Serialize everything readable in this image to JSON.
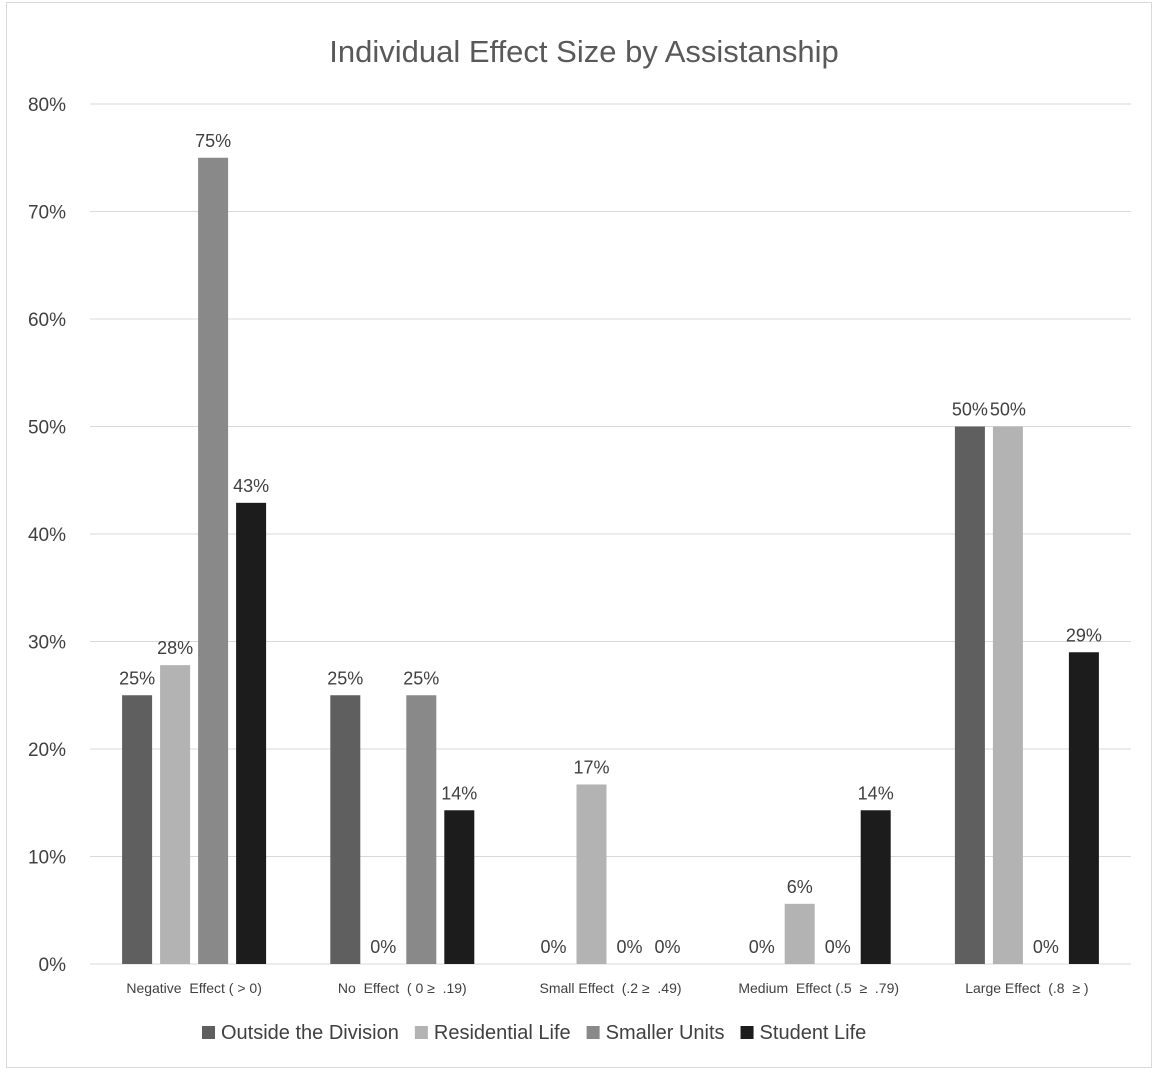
{
  "chart_data": {
    "type": "bar",
    "title": "Individual Effect Size by Assistanship",
    "xlabel": "",
    "ylabel": "",
    "ylim": [
      0,
      80
    ],
    "yticks": [
      "0%",
      "10%",
      "20%",
      "30%",
      "40%",
      "50%",
      "60%",
      "70%",
      "80%"
    ],
    "grid": true,
    "legend_position": "bottom",
    "categories": [
      "Negative  Effect ( > 0)",
      "No  Effect  ( 0 ≥  .19)",
      "Small Effect  (.2 ≥  .49)",
      "Medium  Effect (.5  ≥  .79)",
      "Large Effect  (.8  ≥ )"
    ],
    "series": [
      {
        "name": "Outside the Division",
        "color": "#5f5f5f",
        "values": [
          25,
          25,
          0,
          0,
          50
        ],
        "labels": [
          "25%",
          "25%",
          "0%",
          "0%",
          "50%"
        ]
      },
      {
        "name": "Residential Life",
        "color": "#b3b3b3",
        "values": [
          27.8,
          0,
          16.7,
          5.6,
          50
        ],
        "labels": [
          "28%",
          "0%",
          "17%",
          "6%",
          "50%"
        ]
      },
      {
        "name": "Smaller Units",
        "color": "#898989",
        "values": [
          75,
          25,
          0,
          0,
          0
        ],
        "labels": [
          "75%",
          "25%",
          "0%",
          "0%",
          "0%"
        ]
      },
      {
        "name": "Student Life",
        "color": "#1c1c1c",
        "values": [
          42.9,
          14.3,
          0,
          14.3,
          29
        ],
        "labels": [
          "43%",
          "14%",
          "0%",
          "14%",
          "29%"
        ]
      }
    ]
  }
}
